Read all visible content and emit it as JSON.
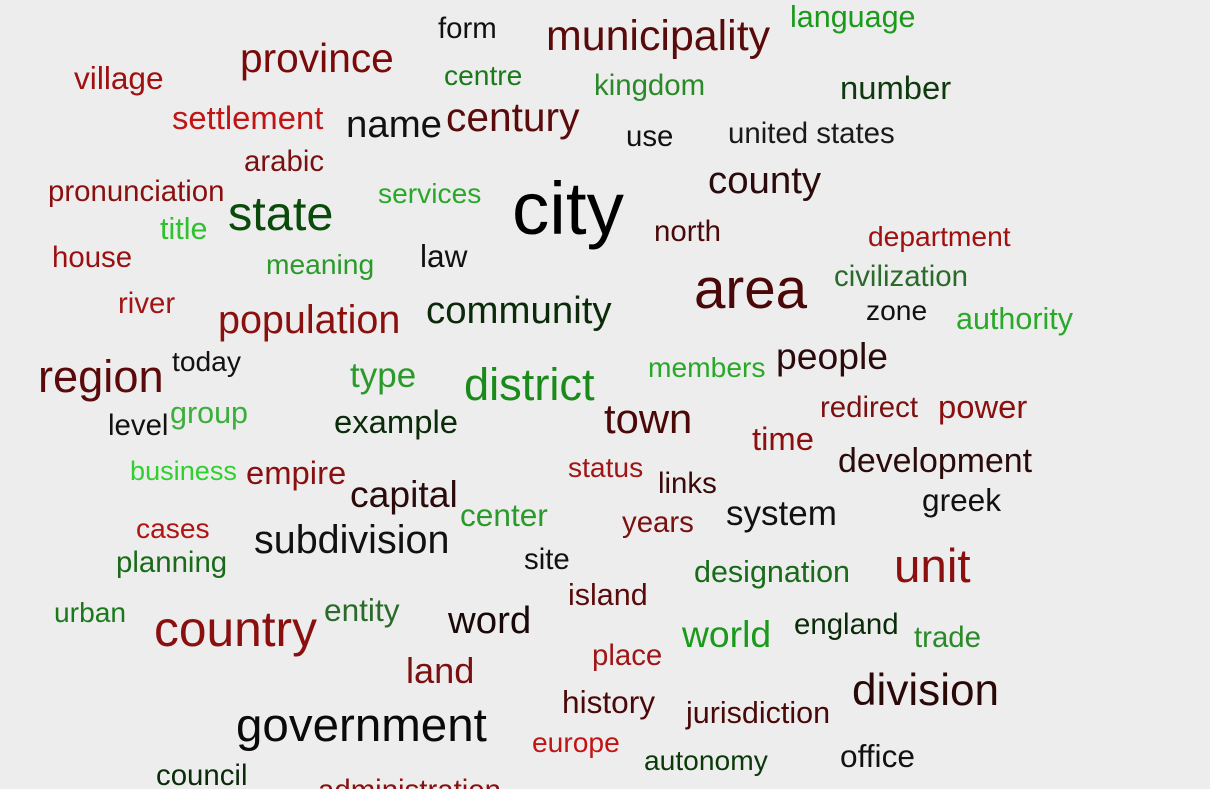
{
  "words": [
    "form",
    "municipality",
    "language",
    "village",
    "province",
    "centre",
    "kingdom",
    "number",
    "settlement",
    "name",
    "century",
    "use",
    "united states",
    "arabic",
    "county",
    "pronunciation",
    "services",
    "city",
    "state",
    "title",
    "north",
    "department",
    "house",
    "law",
    "meaning",
    "civilization",
    "area",
    "river",
    "community",
    "zone",
    "authority",
    "population",
    "today",
    "region",
    "type",
    "district",
    "members",
    "people",
    "level",
    "group",
    "example",
    "redirect",
    "power",
    "town",
    "time",
    "development",
    "business",
    "empire",
    "status",
    "links",
    "capital",
    "greek",
    "center",
    "years",
    "system",
    "cases",
    "subdivision",
    "planning",
    "site",
    "designation",
    "unit",
    "island",
    "urban",
    "country",
    "entity",
    "word",
    "world",
    "england",
    "trade",
    "place",
    "land",
    "division",
    "history",
    "jurisdiction",
    "government",
    "europe",
    "autonomy",
    "office",
    "council",
    "administration"
  ]
}
